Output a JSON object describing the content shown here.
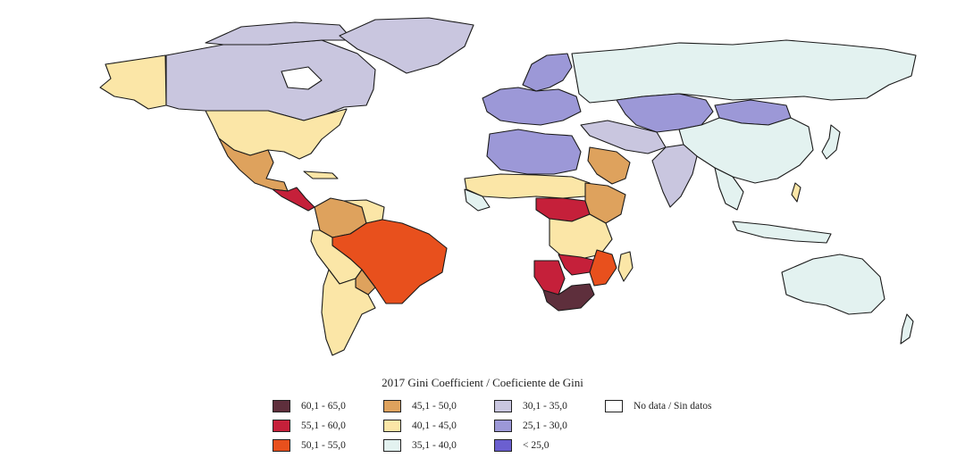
{
  "legend": {
    "title": "2017 Gini Coefficient / Coeficiente de Gini",
    "items": [
      {
        "label": "60,1 - 65,0",
        "color": "#5e2f3c"
      },
      {
        "label": "55,1 - 60,0",
        "color": "#c5203a"
      },
      {
        "label": "50,1 - 55,0",
        "color": "#e8501d"
      },
      {
        "label": "45,1 - 50,0",
        "color": "#dea25d"
      },
      {
        "label": "40,1 - 45,0",
        "color": "#fbe6a7"
      },
      {
        "label": "35,1 - 40,0",
        "color": "#e3f2f0"
      },
      {
        "label": "30,1 - 35,0",
        "color": "#c9c6df"
      },
      {
        "label": "25,1 - 30,0",
        "color": "#9c98d7"
      },
      {
        "label": "< 25,0",
        "color": "#6b5fd0"
      },
      {
        "label": "No data / Sin datos",
        "color": "#ffffff"
      }
    ]
  },
  "regions": [
    {
      "name": "Canada",
      "bracket": "30,1 - 35,0"
    },
    {
      "name": "Alaska",
      "bracket": "40,1 - 45,0"
    },
    {
      "name": "Greenland",
      "bracket": "30,1 - 35,0"
    },
    {
      "name": "United States",
      "bracket": "40,1 - 45,0"
    },
    {
      "name": "Mexico",
      "bracket": "45,1 - 50,0"
    },
    {
      "name": "Central America",
      "bracket": "55,1 - 60,0"
    },
    {
      "name": "Brazil",
      "bracket": "50,1 - 55,0"
    },
    {
      "name": "Colombia",
      "bracket": "45,1 - 50,0"
    },
    {
      "name": "Andean South America",
      "bracket": "40,1 - 45,0"
    },
    {
      "name": "Russia",
      "bracket": "35,1 - 40,0"
    },
    {
      "name": "Europe",
      "bracket": "25,1 - 30,0"
    },
    {
      "name": "China",
      "bracket": "35,1 - 40,0"
    },
    {
      "name": "Kazakhstan",
      "bracket": "25,1 - 30,0"
    },
    {
      "name": "Saudi Arabia",
      "bracket": "45,1 - 50,0"
    },
    {
      "name": "India",
      "bracket": "30,1 - 35,0"
    },
    {
      "name": "Australia",
      "bracket": "35,1 - 40,0"
    },
    {
      "name": "South Africa",
      "bracket": "60,1 - 65,0"
    },
    {
      "name": "Namibia",
      "bracket": "55,1 - 60,0"
    }
  ]
}
